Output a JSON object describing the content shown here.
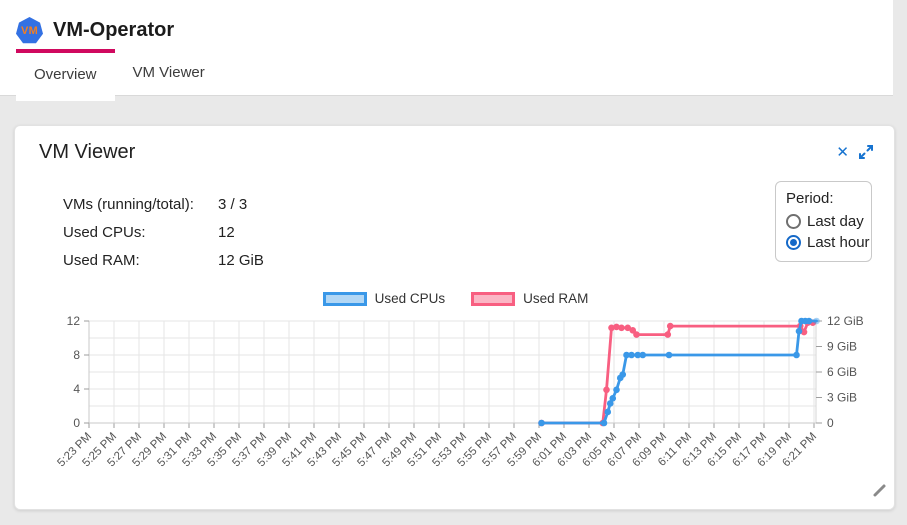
{
  "colors": {
    "accent_pink": "#d0095f",
    "icon_blue": "#1673d0",
    "cpu_blue": "#3a98e8",
    "cpu_blue_fill": "#b2d7f5",
    "ram_pink": "#f85f81",
    "ram_pink_fill": "#fbb6c5"
  },
  "header": {
    "logo_text": "VM",
    "app_title": "VM-Operator"
  },
  "tabs": [
    {
      "label": "Overview",
      "active": true
    },
    {
      "label": "VM Viewer",
      "active": false
    }
  ],
  "panel": {
    "title": "VM Viewer",
    "close_glyph": "✕",
    "stats": [
      {
        "label": "VMs (running/total):",
        "value": "3 / 3"
      },
      {
        "label": "Used CPUs:",
        "value": "12"
      },
      {
        "label": "Used RAM:",
        "value": "12 GiB"
      }
    ],
    "period": {
      "label": "Period:",
      "options": [
        {
          "label": "Last day",
          "selected": false
        },
        {
          "label": "Last hour",
          "selected": true
        }
      ]
    }
  },
  "chart_data": {
    "type": "line",
    "title": "",
    "xlabel": "",
    "ylabel_left": "",
    "ylabel_right": "",
    "x_unit": "minutes since 5:23 PM",
    "x_range": [
      0,
      58
    ],
    "x_tick_step_minutes": 2,
    "x_tick_labels": [
      "5:23 PM",
      "5:25 PM",
      "5:27 PM",
      "5:29 PM",
      "5:31 PM",
      "5:33 PM",
      "5:35 PM",
      "5:37 PM",
      "5:39 PM",
      "5:41 PM",
      "5:43 PM",
      "5:45 PM",
      "5:47 PM",
      "5:49 PM",
      "5:51 PM",
      "5:53 PM",
      "5:55 PM",
      "5:57 PM",
      "5:59 PM",
      "6:01 PM",
      "6:03 PM",
      "6:05 PM",
      "6:07 PM",
      "6:09 PM",
      "6:11 PM",
      "6:13 PM",
      "6:15 PM",
      "6:17 PM",
      "6:19 PM",
      "6:21 PM"
    ],
    "grid": true,
    "legend_position": "top",
    "y_left": {
      "min": 0,
      "max": 12,
      "grid_step": 2,
      "tick_values": [
        0,
        4,
        8,
        12
      ],
      "tick_labels": [
        "0",
        "4",
        "8",
        "12"
      ]
    },
    "y_right": {
      "min": 0,
      "max": 12,
      "tick_values": [
        0,
        3,
        6,
        9,
        12
      ],
      "tick_labels": [
        "0",
        "3 GiB",
        "6 GiB",
        "9 GiB",
        "12 GiB"
      ]
    },
    "series": [
      {
        "name": "Used CPUs",
        "axis": "left",
        "color": "#3a98e8",
        "fill": "#b2d7f5",
        "points": [
          [
            36.2,
            0
          ],
          [
            41.2,
            0
          ],
          [
            41.5,
            1.3
          ],
          [
            41.7,
            2.3
          ],
          [
            41.9,
            2.9
          ],
          [
            42.2,
            3.9
          ],
          [
            42.5,
            5.3
          ],
          [
            42.7,
            5.7
          ],
          [
            43.0,
            8
          ],
          [
            43.4,
            8
          ],
          [
            43.9,
            8
          ],
          [
            44.3,
            8
          ],
          [
            46.4,
            8
          ],
          [
            56.6,
            8
          ],
          [
            56.8,
            10.8
          ],
          [
            57.0,
            12
          ],
          [
            57.3,
            12
          ],
          [
            57.6,
            12
          ],
          [
            58.2,
            12,
            "faded"
          ]
        ]
      },
      {
        "name": "Used RAM",
        "axis": "right",
        "color": "#f85f81",
        "fill": "#fbb6c5",
        "points": [
          [
            36.2,
            0
          ],
          [
            41.1,
            0
          ],
          [
            41.4,
            3.9
          ],
          [
            41.8,
            11.2
          ],
          [
            42.2,
            11.3
          ],
          [
            42.6,
            11.2
          ],
          [
            43.1,
            11.2
          ],
          [
            43.5,
            10.9
          ],
          [
            43.8,
            10.4
          ],
          [
            46.3,
            10.4
          ],
          [
            46.5,
            11.4
          ],
          [
            56.9,
            11.4
          ],
          [
            57.2,
            10.7
          ],
          [
            57.5,
            11.8
          ],
          [
            57.9,
            11.8
          ]
        ]
      }
    ]
  }
}
